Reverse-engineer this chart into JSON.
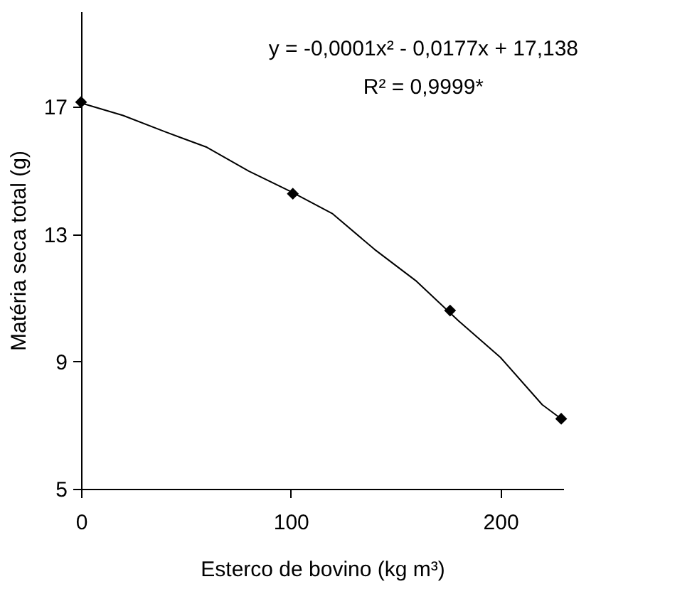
{
  "chart_data": {
    "type": "scatter",
    "xlabel": "Esterco de bovino (kg m³)",
    "ylabel": "Matéria seca total (g)",
    "xlim": [
      0,
      230
    ],
    "xticks": [
      0,
      100,
      200
    ],
    "ylim": [
      5,
      20
    ],
    "yticks": [
      5,
      9,
      13,
      17
    ],
    "grid": false,
    "annotations": [
      "y = -0,0001x² - 0,0177x + 17,138",
      "R² = 0,9999*"
    ],
    "series": [
      {
        "marker": "diamond",
        "color": "#000000",
        "x": [
          0,
          101,
          176,
          229
        ],
        "values": [
          17.15,
          14.27,
          10.6,
          7.2
        ]
      },
      {
        "type": "line",
        "marker": "none",
        "line_style": "solid",
        "color": "#000000",
        "x": [
          0,
          20,
          40,
          60,
          80,
          100,
          120,
          140,
          160,
          180,
          200,
          220,
          229
        ],
        "values": [
          17.12,
          16.73,
          16.22,
          15.73,
          14.98,
          14.34,
          13.64,
          12.52,
          11.52,
          10.28,
          9.13,
          7.64,
          7.2
        ]
      }
    ]
  }
}
